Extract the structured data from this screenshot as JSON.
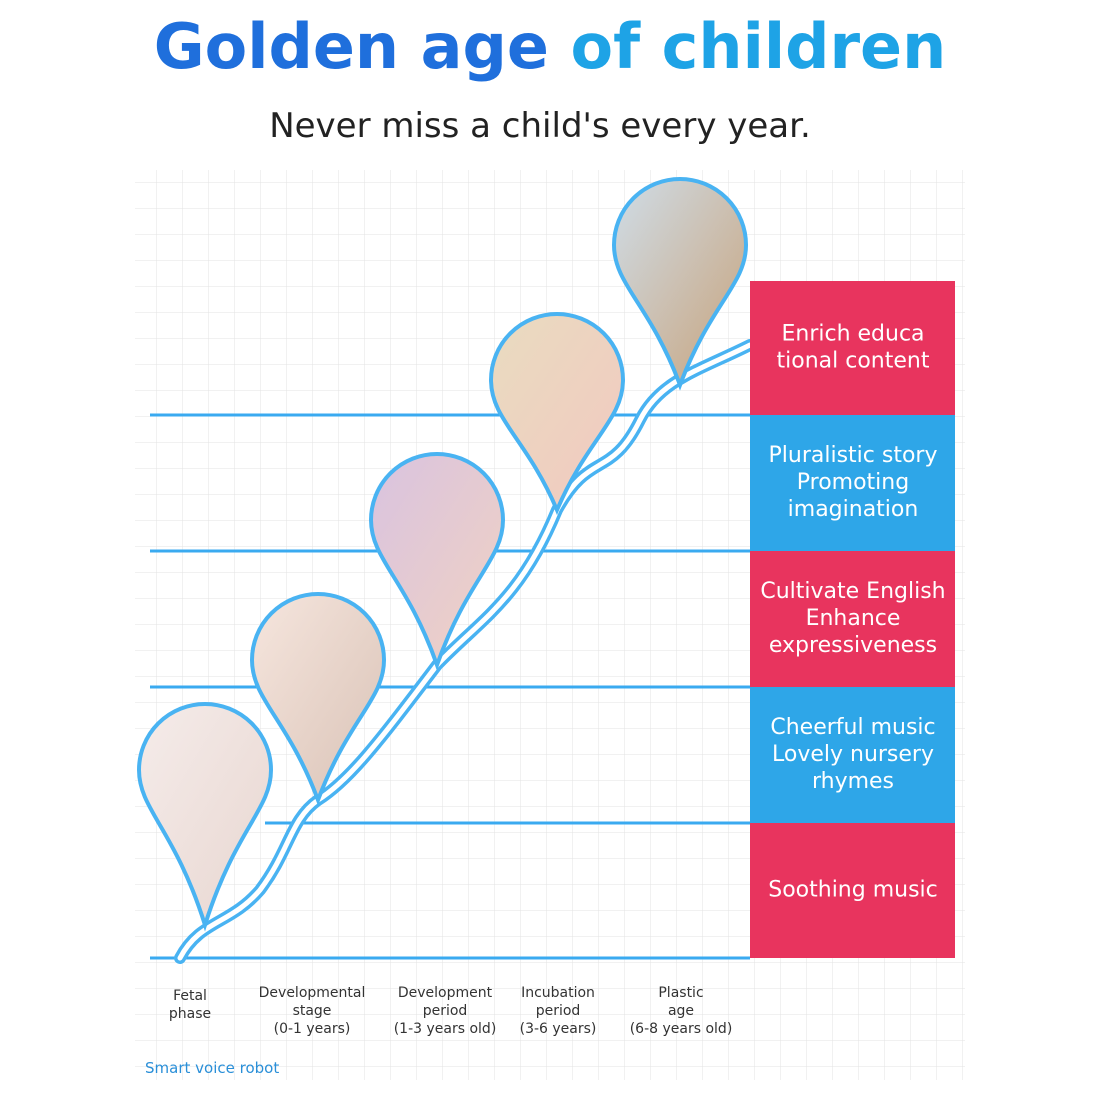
{
  "header": {
    "title_part1": "Golden age",
    "title_part2": "of children",
    "subtitle": "Never miss a child's every year."
  },
  "boxes": [
    {
      "lines": [
        "Enrich educa",
        "tional content"
      ]
    },
    {
      "lines": [
        "Pluralistic story",
        "Promoting",
        "imagination"
      ]
    },
    {
      "lines": [
        "Cultivate English",
        "Enhance",
        "expressiveness"
      ]
    },
    {
      "lines": [
        "Cheerful music",
        "Lovely nursery",
        "rhymes"
      ]
    },
    {
      "lines": [
        "Soothing music"
      ]
    }
  ],
  "stages": [
    {
      "lines": [
        "Fetal",
        "phase"
      ]
    },
    {
      "lines": [
        "Developmental",
        "stage",
        "(0-1 years)"
      ]
    },
    {
      "lines": [
        "Development",
        "period",
        "(1-3 years old)"
      ]
    },
    {
      "lines": [
        "Incubation",
        "period",
        "(3-6 years)"
      ]
    },
    {
      "lines": [
        "Plastic",
        "age",
        "(6-8 years old)"
      ]
    }
  ],
  "footer": "Smart voice robot"
}
